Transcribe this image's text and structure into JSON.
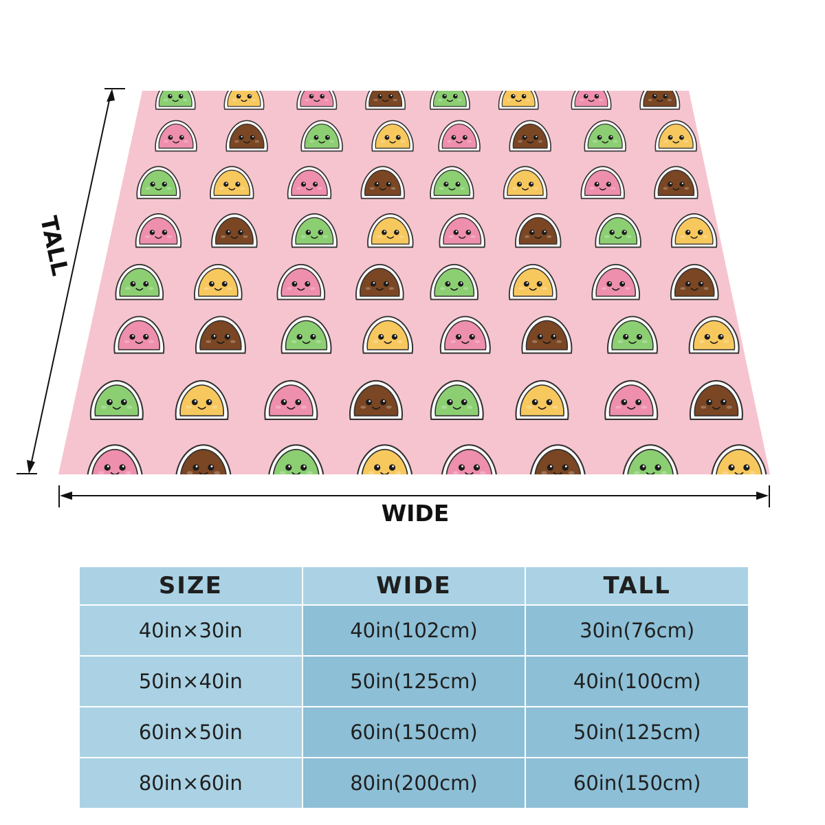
{
  "labels": {
    "wide": "WIDE",
    "tall": "TALL"
  },
  "colors": {
    "blanket": "#f6c4cf",
    "table_light": "#aad2e4",
    "table_dark": "#8dbfd6",
    "mochi": [
      "#8ccf73",
      "#f7c85e",
      "#ee8fad",
      "#7a4623"
    ]
  },
  "pattern": {
    "motif": "kawaii-mochi-faces",
    "color_rows": [
      [
        "green",
        "yellow",
        "pink",
        "brown"
      ],
      [
        "pink",
        "brown",
        "green",
        "yellow"
      ]
    ]
  },
  "table": {
    "headers": [
      "SIZE",
      "WIDE",
      "TALL"
    ],
    "rows": [
      [
        "40in×30in",
        "40in(102cm)",
        "30in(76cm)"
      ],
      [
        "50in×40in",
        "50in(125cm)",
        "40in(100cm)"
      ],
      [
        "60in×50in",
        "60in(150cm)",
        "50in(125cm)"
      ],
      [
        "80in×60in",
        "80in(200cm)",
        "60in(150cm)"
      ]
    ]
  }
}
